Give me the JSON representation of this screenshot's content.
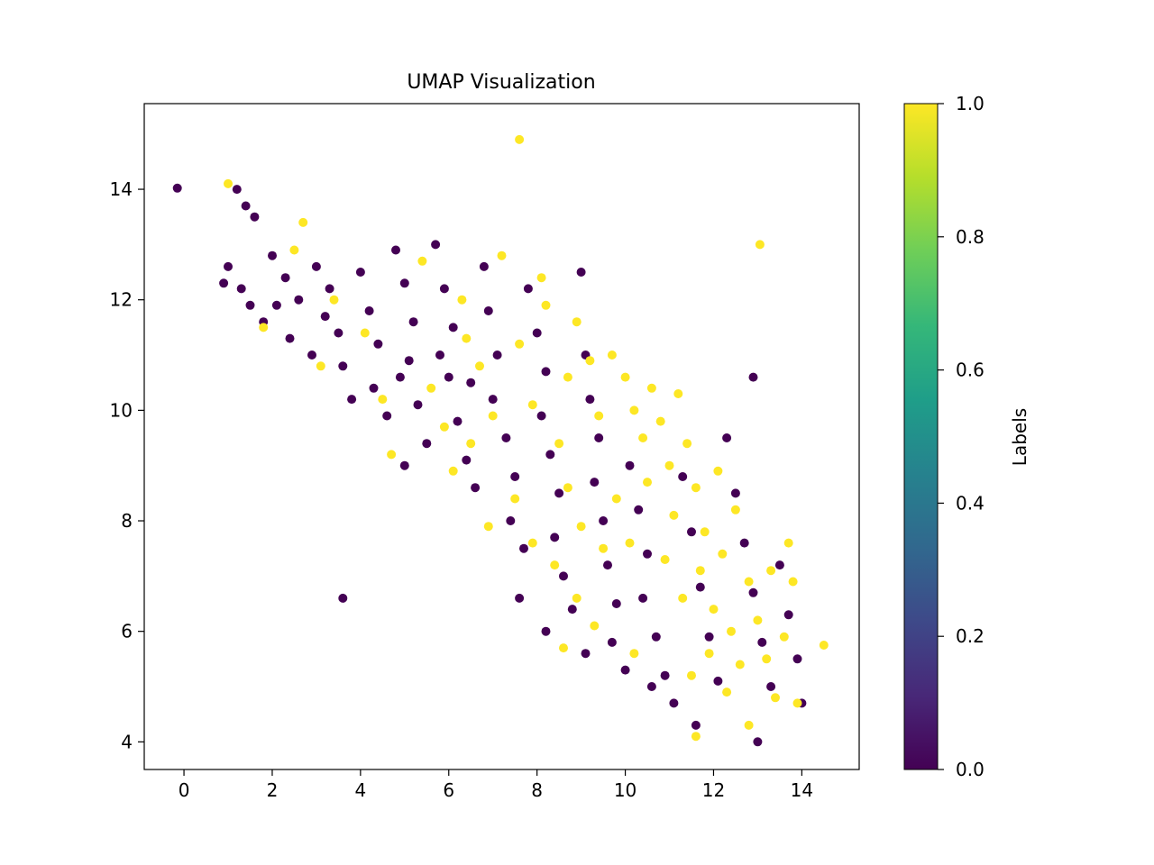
{
  "chart_data": {
    "type": "scatter",
    "title": "UMAP Visualization",
    "xlabel": "",
    "ylabel": "",
    "xlim": [
      -0.9,
      15.3
    ],
    "ylim": [
      3.5,
      15.55
    ],
    "x_ticks": [
      0,
      2,
      4,
      6,
      8,
      10,
      12,
      14
    ],
    "y_ticks": [
      4,
      6,
      8,
      10,
      12,
      14
    ],
    "grid": false,
    "colorbar": {
      "label": "Labels",
      "range": [
        0.0,
        1.0
      ],
      "ticks": [
        "0.0",
        "0.2",
        "0.4",
        "0.6",
        "0.8",
        "1.0"
      ],
      "colormap": "viridis",
      "colors": [
        "#440154",
        "#482878",
        "#3e4989",
        "#31688e",
        "#26828e",
        "#1f9e89",
        "#35b779",
        "#6ece58",
        "#b5de2b",
        "#fde725"
      ]
    },
    "label_colors": {
      "0": "#440154",
      "1": "#fde725"
    },
    "series": [
      {
        "label": 0,
        "points": [
          [
            -0.15,
            14.02
          ],
          [
            3.6,
            6.6
          ],
          [
            12.9,
            10.6
          ],
          [
            14.0,
            4.7
          ],
          [
            13.0,
            4.0
          ],
          [
            1.2,
            14.0
          ],
          [
            1.4,
            13.7
          ],
          [
            1.6,
            13.5
          ],
          [
            0.9,
            12.3
          ],
          [
            1.0,
            12.6
          ],
          [
            1.3,
            12.2
          ],
          [
            1.5,
            11.9
          ],
          [
            1.8,
            11.6
          ],
          [
            2.0,
            12.8
          ],
          [
            2.3,
            12.4
          ],
          [
            2.6,
            12.0
          ],
          [
            2.4,
            11.3
          ],
          [
            2.9,
            11.0
          ],
          [
            3.0,
            12.6
          ],
          [
            3.3,
            12.2
          ],
          [
            3.5,
            11.4
          ],
          [
            3.6,
            10.8
          ],
          [
            3.8,
            10.2
          ],
          [
            4.0,
            12.5
          ],
          [
            4.2,
            11.8
          ],
          [
            4.4,
            11.2
          ],
          [
            4.3,
            10.4
          ],
          [
            4.6,
            9.9
          ],
          [
            4.8,
            12.9
          ],
          [
            5.0,
            12.3
          ],
          [
            5.2,
            11.6
          ],
          [
            5.1,
            10.9
          ],
          [
            5.3,
            10.1
          ],
          [
            5.5,
            9.4
          ],
          [
            5.0,
            9.0
          ],
          [
            5.7,
            13.0
          ],
          [
            5.9,
            12.2
          ],
          [
            6.1,
            11.5
          ],
          [
            6.0,
            10.6
          ],
          [
            6.2,
            9.8
          ],
          [
            6.4,
            9.1
          ],
          [
            6.6,
            8.6
          ],
          [
            6.8,
            12.6
          ],
          [
            6.9,
            11.8
          ],
          [
            7.1,
            11.0
          ],
          [
            7.0,
            10.2
          ],
          [
            7.3,
            9.5
          ],
          [
            7.5,
            8.8
          ],
          [
            7.4,
            8.0
          ],
          [
            7.7,
            7.5
          ],
          [
            7.8,
            12.2
          ],
          [
            8.0,
            11.4
          ],
          [
            8.2,
            10.7
          ],
          [
            8.1,
            9.9
          ],
          [
            8.3,
            9.2
          ],
          [
            8.5,
            8.5
          ],
          [
            8.4,
            7.7
          ],
          [
            8.6,
            7.0
          ],
          [
            8.8,
            6.4
          ],
          [
            9.0,
            12.5
          ],
          [
            9.1,
            11.0
          ],
          [
            9.2,
            10.2
          ],
          [
            9.4,
            9.5
          ],
          [
            9.3,
            8.7
          ],
          [
            9.5,
            8.0
          ],
          [
            9.6,
            7.2
          ],
          [
            9.8,
            6.5
          ],
          [
            9.7,
            5.8
          ],
          [
            10.0,
            5.3
          ],
          [
            10.1,
            9.0
          ],
          [
            10.3,
            8.2
          ],
          [
            10.5,
            7.4
          ],
          [
            10.4,
            6.6
          ],
          [
            10.7,
            5.9
          ],
          [
            10.9,
            5.2
          ],
          [
            11.1,
            4.7
          ],
          [
            11.3,
            8.8
          ],
          [
            11.5,
            7.8
          ],
          [
            11.7,
            6.8
          ],
          [
            11.9,
            5.9
          ],
          [
            12.1,
            5.1
          ],
          [
            12.3,
            9.5
          ],
          [
            12.5,
            8.5
          ],
          [
            12.7,
            7.6
          ],
          [
            12.9,
            6.7
          ],
          [
            13.1,
            5.8
          ],
          [
            13.3,
            5.0
          ],
          [
            13.5,
            7.2
          ],
          [
            13.7,
            6.3
          ],
          [
            13.9,
            5.5
          ],
          [
            7.6,
            6.6
          ],
          [
            8.2,
            6.0
          ],
          [
            9.1,
            5.6
          ],
          [
            10.6,
            5.0
          ],
          [
            11.6,
            4.3
          ],
          [
            6.5,
            10.5
          ],
          [
            5.8,
            11.0
          ],
          [
            4.9,
            10.6
          ],
          [
            3.2,
            11.7
          ],
          [
            2.1,
            11.9
          ]
        ]
      },
      {
        "label": 1,
        "points": [
          [
            7.6,
            14.9
          ],
          [
            13.05,
            13.0
          ],
          [
            1.0,
            14.1
          ],
          [
            2.7,
            13.4
          ],
          [
            14.5,
            5.75
          ],
          [
            11.6,
            4.1
          ],
          [
            13.9,
            4.7
          ],
          [
            1.8,
            11.5
          ],
          [
            2.5,
            12.9
          ],
          [
            3.1,
            10.8
          ],
          [
            3.4,
            12.0
          ],
          [
            4.1,
            11.4
          ],
          [
            4.5,
            10.2
          ],
          [
            4.7,
            9.2
          ],
          [
            5.4,
            12.7
          ],
          [
            5.6,
            10.4
          ],
          [
            6.3,
            12.0
          ],
          [
            6.7,
            10.8
          ],
          [
            7.0,
            9.9
          ],
          [
            7.2,
            12.8
          ],
          [
            7.6,
            11.2
          ],
          [
            7.9,
            10.1
          ],
          [
            8.2,
            11.9
          ],
          [
            8.7,
            10.6
          ],
          [
            8.9,
            11.6
          ],
          [
            9.2,
            10.9
          ],
          [
            9.4,
            9.9
          ],
          [
            9.7,
            11.0
          ],
          [
            10.0,
            10.6
          ],
          [
            10.2,
            10.0
          ],
          [
            10.4,
            9.5
          ],
          [
            10.6,
            10.4
          ],
          [
            10.8,
            9.8
          ],
          [
            11.0,
            9.0
          ],
          [
            11.2,
            10.3
          ],
          [
            11.4,
            9.4
          ],
          [
            11.6,
            8.6
          ],
          [
            11.8,
            7.8
          ],
          [
            11.1,
            8.1
          ],
          [
            10.9,
            7.3
          ],
          [
            11.3,
            6.6
          ],
          [
            11.7,
            7.1
          ],
          [
            12.0,
            6.4
          ],
          [
            12.2,
            7.4
          ],
          [
            12.4,
            6.0
          ],
          [
            12.6,
            5.4
          ],
          [
            12.8,
            6.9
          ],
          [
            13.0,
            6.2
          ],
          [
            13.2,
            5.5
          ],
          [
            13.4,
            4.8
          ],
          [
            13.6,
            5.9
          ],
          [
            13.8,
            6.9
          ],
          [
            13.7,
            7.6
          ],
          [
            12.5,
            8.2
          ],
          [
            12.1,
            8.9
          ],
          [
            10.5,
            8.7
          ],
          [
            10.1,
            7.6
          ],
          [
            9.8,
            8.4
          ],
          [
            9.5,
            7.5
          ],
          [
            9.0,
            7.9
          ],
          [
            8.7,
            8.6
          ],
          [
            8.4,
            7.2
          ],
          [
            8.9,
            6.6
          ],
          [
            9.3,
            6.1
          ],
          [
            8.6,
            5.7
          ],
          [
            7.9,
            7.6
          ],
          [
            7.5,
            8.4
          ],
          [
            6.9,
            7.9
          ],
          [
            6.5,
            9.4
          ],
          [
            6.1,
            8.9
          ],
          [
            5.9,
            9.7
          ],
          [
            6.4,
            11.3
          ],
          [
            8.1,
            12.4
          ],
          [
            8.5,
            9.4
          ],
          [
            12.3,
            4.9
          ],
          [
            11.9,
            5.6
          ],
          [
            11.5,
            5.2
          ],
          [
            10.2,
            5.6
          ],
          [
            12.8,
            4.3
          ],
          [
            13.3,
            7.1
          ]
        ]
      }
    ]
  }
}
